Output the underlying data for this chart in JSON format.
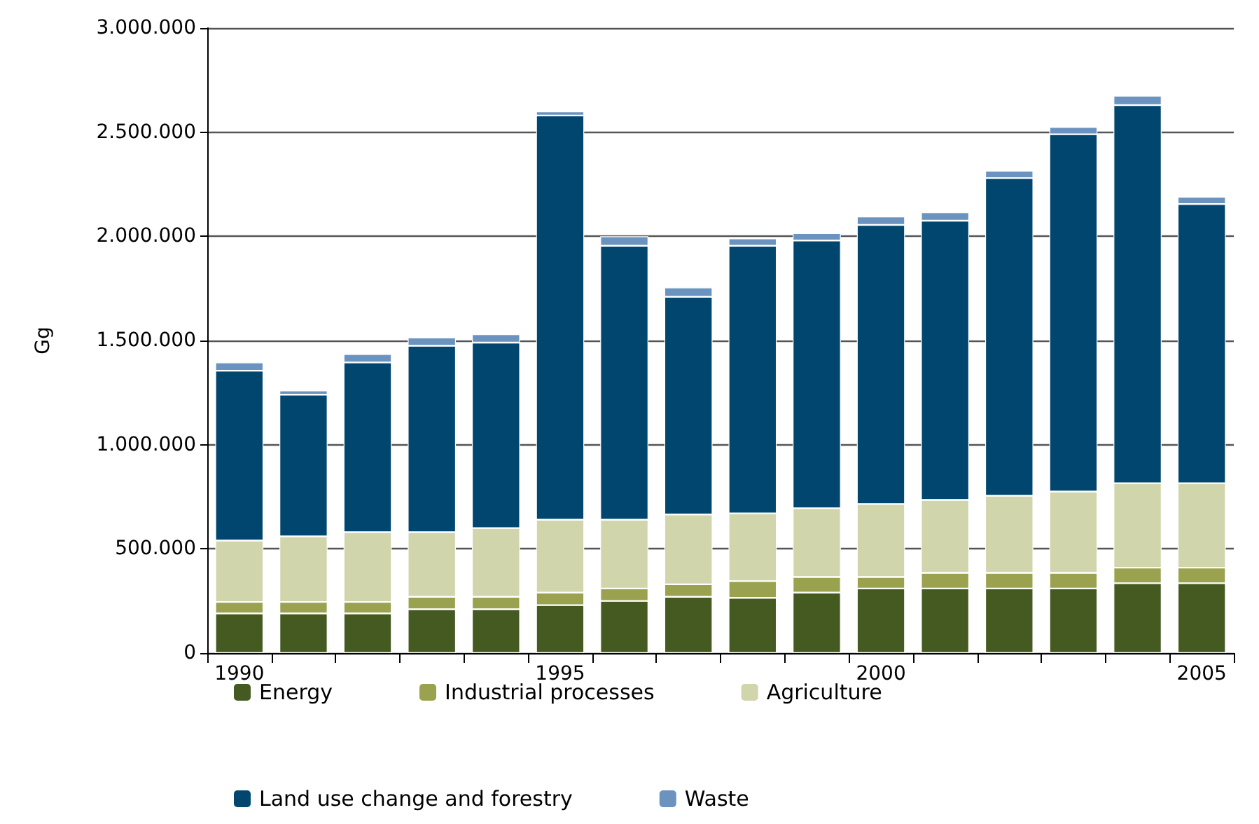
{
  "chart_data": {
    "type": "bar",
    "stacked": true,
    "ylabel": "Gg",
    "categories": [
      "1990",
      null,
      null,
      null,
      null,
      "1995",
      null,
      null,
      null,
      null,
      "2000",
      null,
      null,
      null,
      null,
      "2005"
    ],
    "series": [
      {
        "name": "Energy",
        "color": "#455a21",
        "values": [
          190000,
          190000,
          190000,
          210000,
          210000,
          230000,
          250000,
          270000,
          265000,
          290000,
          310000,
          310000,
          310000,
          310000,
          335000,
          335000
        ]
      },
      {
        "name": "Industrial processes",
        "color": "#9aa24f",
        "values": [
          55000,
          55000,
          55000,
          60000,
          60000,
          60000,
          60000,
          60000,
          80000,
          75000,
          55000,
          75000,
          75000,
          75000,
          75000,
          75000
        ]
      },
      {
        "name": "Agriculture",
        "color": "#d0d5ab",
        "values": [
          295000,
          315000,
          335000,
          310000,
          330000,
          350000,
          330000,
          335000,
          325000,
          330000,
          350000,
          350000,
          370000,
          390000,
          405000,
          405000
        ]
      },
      {
        "name": "Land use change and forestry",
        "color": "#00466f",
        "values": [
          815000,
          680000,
          815000,
          895000,
          890000,
          1940000,
          1315000,
          1045000,
          1285000,
          1285000,
          1340000,
          1340000,
          1525000,
          1715000,
          1815000,
          1340000
        ]
      },
      {
        "name": "Waste",
        "color": "#6a93bf",
        "values": [
          40000,
          20000,
          40000,
          40000,
          40000,
          20000,
          45000,
          45000,
          35000,
          35000,
          40000,
          40000,
          35000,
          35000,
          45000,
          35000
        ]
      }
    ],
    "ylim": [
      0,
      3000000
    ],
    "yticks": [
      {
        "value": 0,
        "label": "0"
      },
      {
        "value": 500000,
        "label": "500.000"
      },
      {
        "value": 1000000,
        "label": "1.000.000"
      },
      {
        "value": 1500000,
        "label": "1.500.000"
      },
      {
        "value": 2000000,
        "label": "2.000.000"
      },
      {
        "value": 2500000,
        "label": "2.500.000"
      },
      {
        "value": 3000000,
        "label": "3.000.000"
      }
    ],
    "grid": "y",
    "legend": "bottom"
  }
}
